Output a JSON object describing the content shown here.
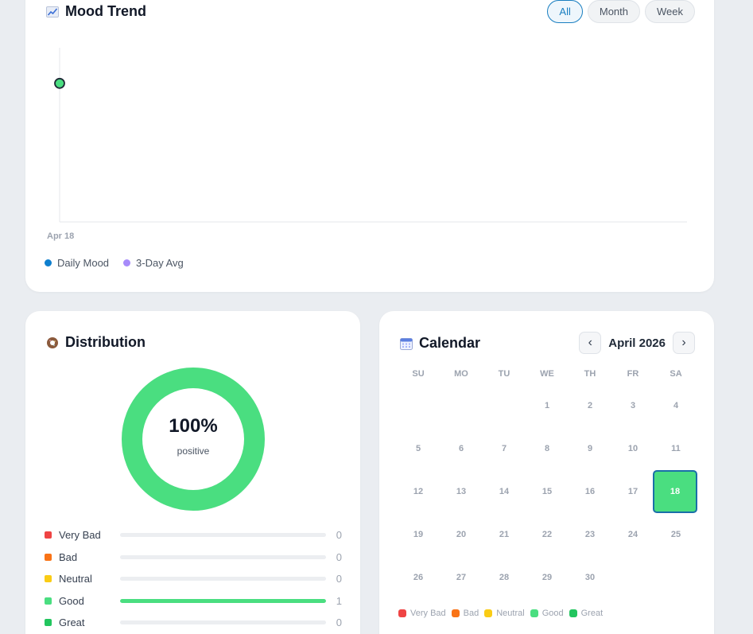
{
  "trend": {
    "title": "Mood Trend",
    "icon": "chart-increasing-icon",
    "filters": [
      {
        "label": "All",
        "active": true
      },
      {
        "label": "Month",
        "active": false
      },
      {
        "label": "Week",
        "active": false
      }
    ],
    "legend": [
      {
        "label": "Daily Mood",
        "color": "#0e7fce"
      },
      {
        "label": "3-Day Avg",
        "color": "#a78bfa"
      }
    ]
  },
  "chart_data": {
    "type": "line",
    "x": [
      "Apr 18"
    ],
    "series": [
      {
        "name": "Daily Mood",
        "values": [
          4
        ],
        "color": "#4ade80"
      }
    ],
    "ylim": [
      0,
      5
    ]
  },
  "distribution": {
    "title": "Distribution",
    "icon": "donut-icon",
    "percent": "100%",
    "sub": "positive",
    "positive_fraction": 1.0,
    "ring_color": "#4ade80",
    "rows": [
      {
        "label": "Very Bad",
        "count": "0",
        "fraction": 0,
        "color": "#ef4444"
      },
      {
        "label": "Bad",
        "count": "0",
        "fraction": 0,
        "color": "#f97316"
      },
      {
        "label": "Neutral",
        "count": "0",
        "fraction": 0,
        "color": "#facc15"
      },
      {
        "label": "Good",
        "count": "1",
        "fraction": 1,
        "color": "#4ade80"
      },
      {
        "label": "Great",
        "count": "0",
        "fraction": 0,
        "color": "#22c55e"
      }
    ]
  },
  "calendar": {
    "title": "Calendar",
    "icon": "calendar-icon",
    "month": "April 2026",
    "prev": "‹",
    "next": "›",
    "weekdays": [
      "SU",
      "MO",
      "TU",
      "WE",
      "TH",
      "FR",
      "SA"
    ],
    "first_weekday": 3,
    "days": 30,
    "selected_day": 18,
    "legend": [
      {
        "label": "Very Bad",
        "color": "#ef4444"
      },
      {
        "label": "Bad",
        "color": "#f97316"
      },
      {
        "label": "Neutral",
        "color": "#facc15"
      },
      {
        "label": "Good",
        "color": "#4ade80"
      },
      {
        "label": "Great",
        "color": "#22c55e"
      }
    ]
  }
}
